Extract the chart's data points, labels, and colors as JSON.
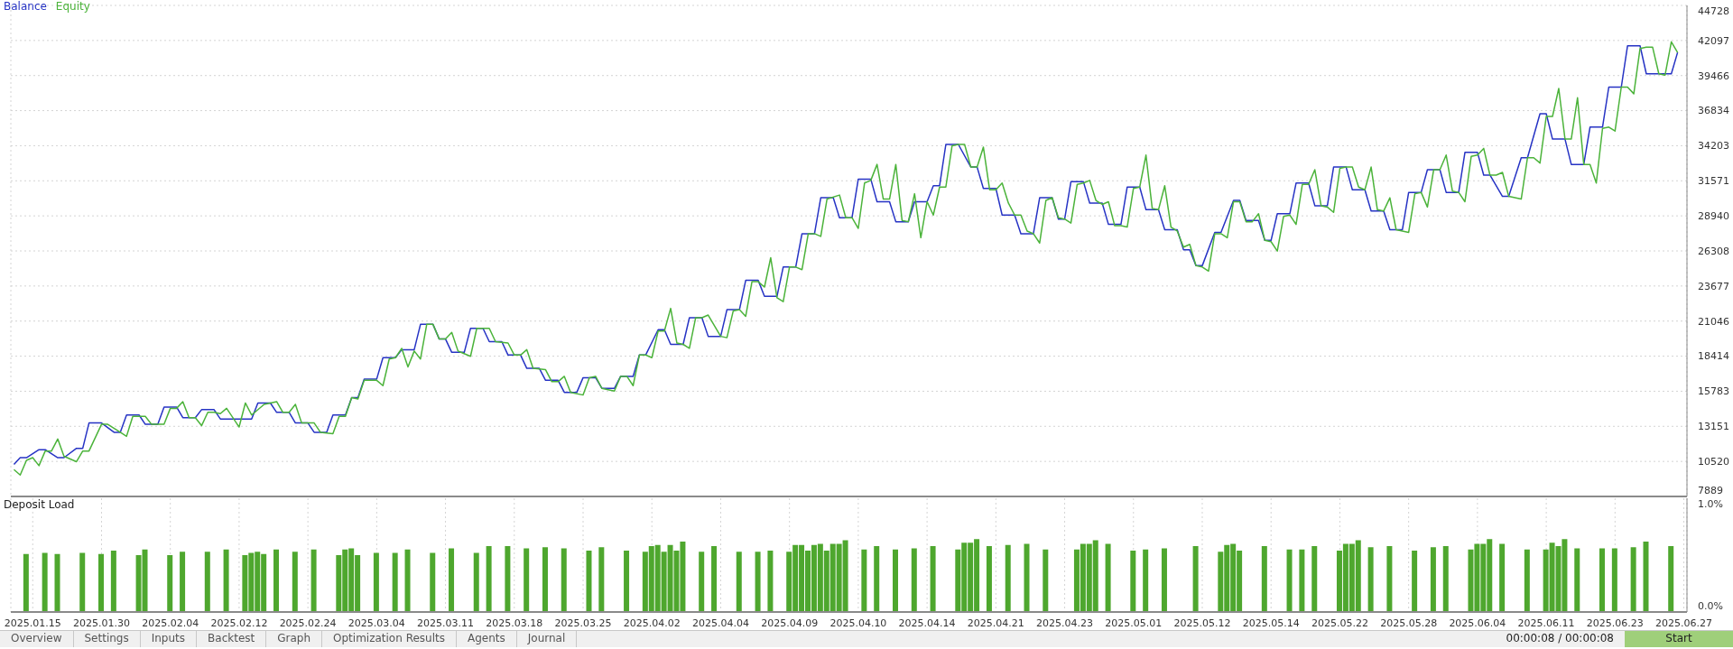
{
  "chart_data": [
    {
      "type": "line",
      "legend": "top left",
      "grid": true,
      "tick_labels": "y",
      "ylim": [
        7889,
        44728
      ],
      "yticks": [
        7889,
        10520,
        13151,
        15783,
        18414,
        21046,
        23677,
        26308,
        28940,
        31571,
        34203,
        36834,
        39466,
        42097,
        44728
      ],
      "categories": [
        null,
        null,
        null,
        "2025.01.15",
        null,
        null,
        null,
        null,
        null,
        null,
        null,
        null,
        null,
        null,
        "2025.01.30",
        null,
        null,
        null,
        null,
        null,
        null,
        null,
        null,
        null,
        null,
        "2025.02.04",
        null,
        null,
        null,
        null,
        null,
        null,
        null,
        null,
        null,
        null,
        "2025.02.12",
        null,
        null,
        null,
        null,
        null,
        null,
        null,
        null,
        null,
        null,
        "2025.02.24",
        null,
        null,
        null,
        null,
        null,
        null,
        null,
        null,
        null,
        null,
        "2025.03.04",
        null,
        null,
        null,
        null,
        null,
        null,
        null,
        null,
        null,
        null,
        "2025.03.11",
        null,
        null,
        null,
        null,
        null,
        null,
        null,
        null,
        null,
        null,
        "2025.03.18",
        null,
        null,
        null,
        null,
        null,
        null,
        null,
        null,
        null,
        null,
        "2025.03.25",
        null,
        null,
        null,
        null,
        null,
        null,
        null,
        null,
        null,
        null,
        "2025.04.02",
        null,
        null,
        null,
        null,
        null,
        null,
        null,
        null,
        null,
        null,
        "2025.04.04",
        null,
        null,
        null,
        null,
        null,
        null,
        null,
        null,
        null,
        null,
        "2025.04.09",
        null,
        null,
        null,
        null,
        null,
        null,
        null,
        null,
        null,
        null,
        "2025.04.10",
        null,
        null,
        null,
        null,
        null,
        null,
        null,
        null,
        null,
        null,
        "2025.04.14",
        null,
        null,
        null,
        null,
        null,
        null,
        null,
        null,
        null,
        null,
        "2025.04.21",
        null,
        null,
        null,
        null,
        null,
        null,
        null,
        null,
        null,
        null,
        "2025.04.23",
        null,
        null,
        null,
        null,
        null,
        null,
        null,
        null,
        null,
        null,
        "2025.05.01",
        null,
        null,
        null,
        null,
        null,
        null,
        null,
        null,
        null,
        null,
        "2025.05.12",
        null,
        null,
        null,
        null,
        null,
        null,
        null,
        null,
        null,
        null,
        "2025.05.14",
        null,
        null,
        null,
        null,
        null,
        null,
        null,
        null,
        null,
        null,
        "2025.05.22",
        null,
        null,
        null,
        null,
        null,
        null,
        null,
        null,
        null,
        null,
        "2025.05.28",
        null,
        null,
        null,
        null,
        null,
        null,
        null,
        null,
        null,
        null,
        "2025.06.04",
        null,
        null,
        null,
        null,
        null,
        null,
        null,
        null,
        null,
        null,
        "2025.06.11",
        null,
        null,
        null,
        null,
        null,
        null,
        null,
        null,
        null,
        null,
        "2025.06.23",
        null,
        null,
        null,
        null,
        null,
        null,
        null,
        null,
        null,
        null,
        "2025.06.27"
      ],
      "series": [
        {
          "name": "Balance",
          "color": "#2633c4",
          "values": [
            10300,
            10800,
            10800,
            null,
            11400,
            11400,
            null,
            10800,
            10800,
            null,
            11500,
            11500,
            13400,
            null,
            13400,
            null,
            12700,
            12700,
            14000,
            null,
            14000,
            13300,
            null,
            13300,
            14600,
            null,
            14600,
            13800,
            null,
            13800,
            14400,
            null,
            14400,
            13700,
            null,
            null,
            null,
            null,
            13700,
            14900,
            null,
            14900,
            14200,
            null,
            14200,
            13400,
            null,
            13400,
            12700,
            null,
            12700,
            14000,
            null,
            14000,
            15300,
            15300,
            16700,
            null,
            16700,
            18300,
            null,
            18300,
            18900,
            null,
            18900,
            20800,
            null,
            20800,
            19700,
            19700,
            18700,
            null,
            18700,
            20500,
            null,
            20500,
            19500,
            null,
            19500,
            18500,
            null,
            18500,
            17500,
            null,
            17500,
            16600,
            null,
            16600,
            15700,
            null,
            15700,
            16800,
            null,
            16800,
            16000,
            null,
            16000,
            16900,
            null,
            16900,
            18500,
            18500,
            null,
            20400,
            20400,
            19300,
            null,
            19300,
            21300,
            null,
            21300,
            19900,
            null,
            19900,
            21900,
            null,
            21900,
            24100,
            null,
            24100,
            22900,
            null,
            22900,
            25100,
            null,
            25100,
            27600,
            null,
            27600,
            30300,
            null,
            30300,
            28800,
            null,
            28800,
            31700,
            null,
            31700,
            30000,
            null,
            30000,
            28500,
            null,
            28500,
            30000,
            null,
            30000,
            31200,
            31200,
            34300,
            null,
            34300,
            null,
            32600,
            32600,
            31000,
            null,
            31000,
            29000,
            null,
            29000,
            27600,
            null,
            27600,
            30300,
            null,
            30300,
            28700,
            28700,
            31500,
            null,
            31500,
            29900,
            null,
            29900,
            28300,
            null,
            28300,
            31100,
            null,
            31100,
            29400,
            null,
            29400,
            27900,
            null,
            27900,
            26400,
            26400,
            25200,
            25200,
            null,
            27700,
            27700,
            null,
            30100,
            30100,
            28600,
            null,
            28600,
            27100,
            27100,
            29100,
            null,
            29100,
            31400,
            null,
            31400,
            29700,
            null,
            29700,
            32600,
            null,
            32600,
            30900,
            null,
            30900,
            29300,
            null,
            29300,
            27900,
            null,
            27900,
            30700,
            null,
            30700,
            32400,
            null,
            32400,
            30700,
            null,
            30700,
            33700,
            null,
            33700,
            32000,
            32000,
            null,
            30400,
            30400,
            null,
            33300,
            33300,
            null,
            36600,
            36600,
            34700,
            null,
            34700,
            32800,
            null,
            32800,
            35600,
            null,
            35600,
            38600,
            null,
            38600,
            41700,
            null,
            41700,
            39600,
            null,
            null,
            null,
            39600,
            41200,
            null
          ]
        },
        {
          "name": "Equity",
          "color": "#4bb33a",
          "values": [
            9900,
            9500,
            10600,
            10800,
            10200,
            11300,
            11300,
            12200,
            10900,
            10700,
            10500,
            11300,
            11300,
            null,
            13300,
            13300,
            null,
            12700,
            12400,
            13900,
            null,
            13900,
            13300,
            null,
            13300,
            14500,
            14500,
            15000,
            13800,
            13800,
            13200,
            14200,
            14200,
            14100,
            14500,
            null,
            13100,
            14900,
            14000,
            null,
            14800,
            null,
            15000,
            14200,
            14200,
            14800,
            13400,
            null,
            13400,
            12700,
            null,
            12600,
            13900,
            13900,
            15300,
            15200,
            16600,
            null,
            16600,
            16200,
            18200,
            18300,
            19000,
            17600,
            18800,
            18200,
            20800,
            20800,
            19700,
            19700,
            20200,
            18800,
            null,
            18400,
            20500,
            null,
            20500,
            19500,
            null,
            19400,
            18500,
            18500,
            18900,
            17500,
            null,
            17400,
            16500,
            16500,
            16900,
            15700,
            null,
            15500,
            16800,
            16900,
            16000,
            null,
            15800,
            16900,
            16900,
            16200,
            18500,
            18500,
            18300,
            20300,
            20300,
            22000,
            19400,
            19300,
            19000,
            21300,
            21300,
            21500,
            null,
            19900,
            19800,
            21800,
            21900,
            21400,
            24000,
            24000,
            23600,
            25800,
            22800,
            22500,
            25100,
            25100,
            24900,
            27600,
            27600,
            27400,
            30200,
            null,
            30500,
            28800,
            28800,
            28000,
            31400,
            31600,
            32800,
            30200,
            30200,
            32800,
            28600,
            28500,
            30600,
            27300,
            30000,
            29000,
            31100,
            31100,
            34200,
            34300,
            34300,
            32600,
            32600,
            34100,
            30900,
            30900,
            31400,
            29900,
            29000,
            29000,
            27800,
            27600,
            26900,
            30100,
            30300,
            28800,
            28700,
            28400,
            31300,
            31400,
            31600,
            30100,
            29800,
            30000,
            28200,
            28200,
            28100,
            31000,
            31100,
            33500,
            29500,
            29400,
            31200,
            28100,
            27800,
            26600,
            26800,
            25200,
            25100,
            24800,
            27600,
            27600,
            27300,
            30000,
            30000,
            28500,
            28500,
            29100,
            27100,
            27000,
            26300,
            28900,
            29000,
            28300,
            31300,
            31300,
            32400,
            29700,
            29600,
            29200,
            32500,
            32600,
            32600,
            31100,
            30900,
            32600,
            29400,
            29300,
            30300,
            27900,
            27800,
            27700,
            30600,
            30700,
            29600,
            32400,
            32400,
            33500,
            30800,
            30700,
            30000,
            33400,
            33500,
            34000,
            32000,
            32000,
            32200,
            30400,
            30300,
            30200,
            33300,
            33300,
            32900,
            36400,
            36400,
            38500,
            34700,
            34700,
            37800,
            32800,
            32800,
            31400,
            35500,
            35600,
            35300,
            38600,
            38600,
            38100,
            41500,
            41600,
            41600,
            39600,
            39500,
            42000,
            41200,
            null
          ]
        }
      ]
    },
    {
      "type": "bar",
      "title": "Deposit Load",
      "grid": "x",
      "color": "#4ea72e",
      "ylim": [
        0,
        1
      ],
      "yticks": [
        {
          "value": 0,
          "label": "0.0%"
        },
        {
          "value": 1,
          "label": "1.0%"
        }
      ],
      "categories": [
        null,
        null,
        null,
        "2025.01.15",
        null,
        null,
        null,
        null,
        null,
        null,
        null,
        null,
        null,
        null,
        "2025.01.30",
        null,
        null,
        null,
        null,
        null,
        null,
        null,
        null,
        null,
        null,
        "2025.02.04",
        null,
        null,
        null,
        null,
        null,
        null,
        null,
        null,
        null,
        null,
        "2025.02.12",
        null,
        null,
        null,
        null,
        null,
        null,
        null,
        null,
        null,
        null,
        "2025.02.24",
        null,
        null,
        null,
        null,
        null,
        null,
        null,
        null,
        null,
        null,
        "2025.03.04",
        null,
        null,
        null,
        null,
        null,
        null,
        null,
        null,
        null,
        null,
        "2025.03.11",
        null,
        null,
        null,
        null,
        null,
        null,
        null,
        null,
        null,
        null,
        "2025.03.18",
        null,
        null,
        null,
        null,
        null,
        null,
        null,
        null,
        null,
        null,
        "2025.03.25",
        null,
        null,
        null,
        null,
        null,
        null,
        null,
        null,
        null,
        null,
        "2025.04.02",
        null,
        null,
        null,
        null,
        null,
        null,
        null,
        null,
        null,
        null,
        "2025.04.04",
        null,
        null,
        null,
        null,
        null,
        null,
        null,
        null,
        null,
        null,
        "2025.04.09",
        null,
        null,
        null,
        null,
        null,
        null,
        null,
        null,
        null,
        null,
        "2025.04.10",
        null,
        null,
        null,
        null,
        null,
        null,
        null,
        null,
        null,
        null,
        "2025.04.14",
        null,
        null,
        null,
        null,
        null,
        null,
        null,
        null,
        null,
        null,
        "2025.04.21",
        null,
        null,
        null,
        null,
        null,
        null,
        null,
        null,
        null,
        null,
        "2025.04.23",
        null,
        null,
        null,
        null,
        null,
        null,
        null,
        null,
        null,
        null,
        "2025.05.01",
        null,
        null,
        null,
        null,
        null,
        null,
        null,
        null,
        null,
        null,
        "2025.05.12",
        null,
        null,
        null,
        null,
        null,
        null,
        null,
        null,
        null,
        null,
        "2025.05.14",
        null,
        null,
        null,
        null,
        null,
        null,
        null,
        null,
        null,
        null,
        "2025.05.22",
        null,
        null,
        null,
        null,
        null,
        null,
        null,
        null,
        null,
        null,
        "2025.05.28",
        null,
        null,
        null,
        null,
        null,
        null,
        null,
        null,
        null,
        null,
        "2025.06.04",
        null,
        null,
        null,
        null,
        null,
        null,
        null,
        null,
        null,
        null,
        "2025.06.11",
        null,
        null,
        null,
        null,
        null,
        null,
        null,
        null,
        null,
        null,
        "2025.06.23",
        null,
        null,
        null,
        null,
        null,
        null,
        null,
        null,
        null,
        null,
        "2025.06.27"
      ],
      "values": [
        null,
        null,
        0.51,
        null,
        null,
        0.52,
        null,
        0.51,
        null,
        null,
        null,
        0.52,
        null,
        null,
        0.51,
        null,
        0.54,
        null,
        null,
        null,
        0.5,
        0.55,
        null,
        null,
        null,
        0.5,
        null,
        0.53,
        null,
        null,
        null,
        0.53,
        null,
        null,
        0.55,
        null,
        null,
        0.5,
        0.52,
        0.53,
        0.51,
        null,
        0.55,
        null,
        null,
        0.53,
        null,
        null,
        0.55,
        null,
        null,
        null,
        0.5,
        0.55,
        0.56,
        0.5,
        null,
        null,
        0.52,
        null,
        null,
        0.52,
        null,
        0.55,
        null,
        null,
        null,
        0.52,
        null,
        null,
        0.56,
        null,
        null,
        null,
        0.52,
        null,
        0.58,
        null,
        null,
        0.58,
        null,
        null,
        0.56,
        null,
        null,
        0.57,
        null,
        null,
        0.56,
        null,
        null,
        null,
        0.54,
        null,
        0.57,
        null,
        null,
        null,
        0.54,
        null,
        null,
        0.53,
        0.58,
        0.59,
        0.53,
        0.59,
        0.54,
        0.62,
        null,
        null,
        0.53,
        null,
        0.58,
        null,
        null,
        null,
        0.53,
        null,
        null,
        0.53,
        null,
        0.54,
        null,
        null,
        0.53,
        0.59,
        0.59,
        0.54,
        0.59,
        0.6,
        0.54,
        0.6,
        0.6,
        0.63,
        null,
        null,
        0.55,
        null,
        0.58,
        null,
        null,
        0.55,
        null,
        null,
        0.56,
        null,
        null,
        0.58,
        null,
        null,
        null,
        0.55,
        0.61,
        0.61,
        0.64,
        null,
        0.58,
        null,
        null,
        0.59,
        null,
        null,
        0.6,
        null,
        null,
        0.55,
        null,
        null,
        null,
        null,
        0.55,
        0.6,
        0.6,
        0.63,
        null,
        0.6,
        null,
        null,
        null,
        0.54,
        null,
        0.55,
        null,
        null,
        0.56,
        null,
        null,
        null,
        null,
        0.58,
        null,
        null,
        null,
        0.53,
        0.59,
        0.6,
        0.54,
        null,
        null,
        null,
        0.58,
        null,
        null,
        null,
        0.55,
        null,
        0.55,
        null,
        0.58,
        null,
        null,
        null,
        0.54,
        0.6,
        0.6,
        0.63,
        null,
        0.57,
        null,
        null,
        0.58,
        null,
        null,
        null,
        0.54,
        null,
        null,
        0.57,
        null,
        0.58,
        null,
        null,
        null,
        0.55,
        0.6,
        0.6,
        0.64,
        null,
        0.6,
        null,
        null,
        null,
        0.55,
        null,
        null,
        0.55,
        0.61,
        0.58,
        0.64,
        null,
        0.56,
        null,
        null,
        null,
        0.56,
        null,
        0.56,
        null,
        null,
        0.57,
        null,
        0.62,
        null,
        null,
        null,
        0.58,
        null,
        null
      ]
    },
    {
      "type": "other",
      "annotations": [
        "Overview",
        "Settings",
        "Inputs",
        "Backtest",
        "Graph",
        "Optimization Results",
        "Agents",
        "Journal",
        "00:00:08 / 00:00:08",
        "Start"
      ]
    }
  ]
}
